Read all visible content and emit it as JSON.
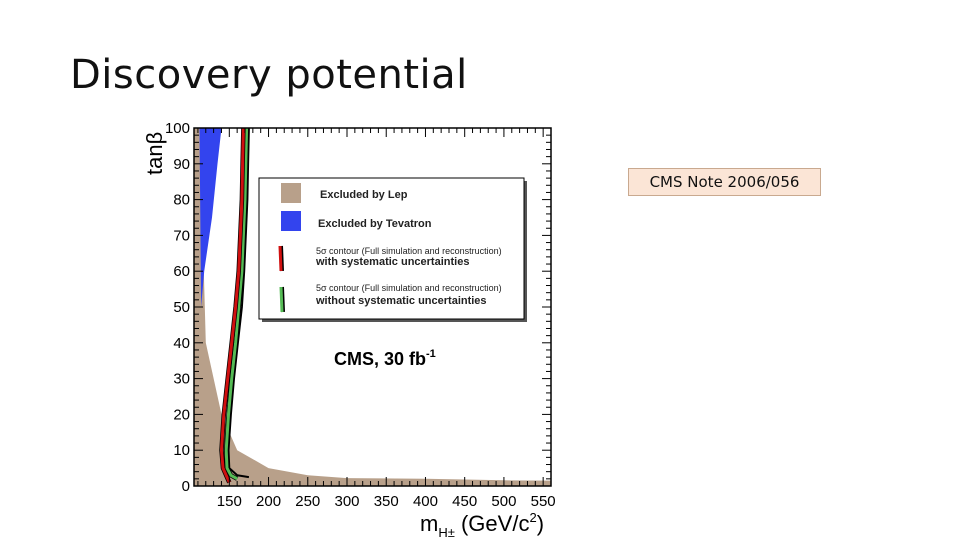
{
  "slide": {
    "title": "Discovery potential",
    "note": "CMS Note 2006/056"
  },
  "colors": {
    "lep": "#b8a08a",
    "tevatron": "#3344ee",
    "red_contour": "#d01010",
    "green_contour": "#55bb55",
    "black_line": "#000000"
  },
  "chart_data": {
    "type": "area",
    "title": "",
    "xlabel": "m_H± (GeV/c²)",
    "xlabel_main": "m",
    "xlabel_sub": "H±",
    "xlabel_unit": "(GeV/c",
    "xlabel_sup": "2",
    "xlabel_close": ")",
    "ylabel": "tanβ",
    "xlim": [
      105,
      560
    ],
    "ylim": [
      0,
      100
    ],
    "x_ticks": [
      150,
      200,
      250,
      300,
      350,
      400,
      450,
      500,
      550
    ],
    "y_ticks": [
      0,
      10,
      20,
      30,
      40,
      50,
      60,
      70,
      80,
      90,
      100
    ],
    "annotation": "CMS, 30 fb",
    "annotation_sup": "-1",
    "legend": {
      "placement": "top-right",
      "entries": [
        {
          "name": "Excluded by Lep",
          "style": "fill",
          "color": "#b8a08a"
        },
        {
          "name": "Excluded by Tevatron",
          "style": "fill",
          "color": "#3344ee"
        },
        {
          "name": "5σ contour (Full simulation and reconstruction)",
          "name2": "with systematic uncertainties",
          "style": "line",
          "color": "#d01010"
        },
        {
          "name": "5σ contour (Full simulation and reconstruction)",
          "name2": "without systematic uncertainties",
          "style": "line",
          "color": "#55bb55"
        }
      ]
    },
    "series": [
      {
        "key": "lep",
        "style": "fill",
        "x": [
          105,
          105,
          112,
          115,
          120,
          140,
          160,
          200,
          250,
          300,
          400,
          500,
          560,
          560
        ],
        "y": [
          0,
          100,
          100,
          80,
          40,
          20,
          10,
          5,
          3,
          2.2,
          2,
          1.6,
          1.5,
          0
        ]
      },
      {
        "key": "tevatron",
        "style": "fill",
        "x": [
          112,
          140,
          135,
          128,
          118,
          114
        ],
        "y": [
          100,
          100,
          90,
          75,
          60,
          50
        ]
      },
      {
        "key": "contour_with_syst",
        "style": "line",
        "x": [
          168,
          167,
          166,
          164,
          162,
          158,
          153,
          148,
          143,
          140,
          142,
          148,
          150
        ],
        "y": [
          100,
          90,
          80,
          70,
          60,
          50,
          40,
          30,
          20,
          10,
          5,
          2,
          1
        ]
      },
      {
        "key": "contour_without_syst",
        "style": "line",
        "x": [
          172,
          171,
          170,
          168,
          166,
          162,
          158,
          153,
          149,
          146,
          147,
          152,
          160
        ],
        "y": [
          100,
          90,
          80,
          70,
          60,
          50,
          40,
          30,
          20,
          10,
          5,
          3,
          2
        ]
      },
      {
        "key": "black_outer",
        "style": "line",
        "x": [
          175,
          174,
          173,
          171,
          169,
          166,
          161,
          156,
          152,
          149,
          150,
          160,
          175
        ],
        "y": [
          100,
          90,
          80,
          70,
          60,
          50,
          40,
          30,
          20,
          10,
          5,
          3,
          2.5
        ]
      }
    ]
  }
}
